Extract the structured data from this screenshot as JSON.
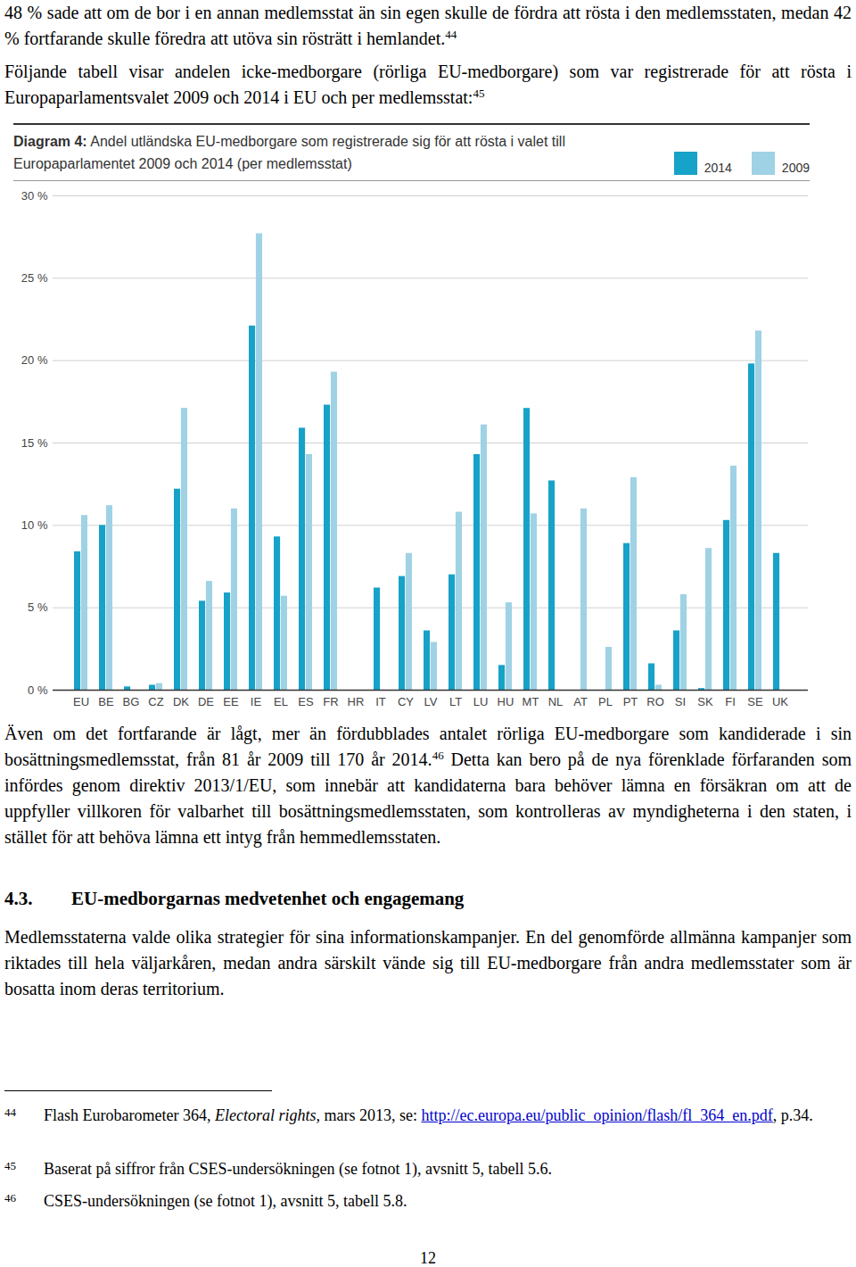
{
  "page": {
    "paragraphs_top": [
      [
        {
          "text": "48 % sade att om de bor i en annan medlemsstat än sin egen skulle de fördra att rösta i den medlemsstaten, medan 42 % fortfarande skulle föredra att utöva sin rösträtt i hemlandet."
        },
        {
          "sup": "44"
        }
      ],
      [
        {
          "text": "Följande tabell visar andelen icke-medborgare (rörliga EU-medborgare) som var registrerade för att rösta i Europaparlamentsvalet 2009 och 2014 i EU och per medlemsstat:"
        },
        {
          "sup": "45"
        }
      ]
    ],
    "paragraphs_after_chart": [
      [
        {
          "text": "Även om det fortfarande är lågt, mer än fördubblades antalet rörliga EU-medborgare som kandiderade i sin bosättningsmedlemsstat, från 81 år 2009 till 170 år 2014."
        },
        {
          "sup": "46"
        },
        {
          "text": " Detta kan bero på de nya förenklade förfaranden som infördes genom direktiv 2013/1/EU, som innebär att kandidaterna bara behöver lämna en försäkran om att de uppfyller villkoren för valbarhet till bosättningsmedlemsstaten, som kontrolleras av myndigheterna i den staten, i stället för att behöva lämna ett intyg från hemmedlemsstaten."
        }
      ]
    ],
    "heading": {
      "number": "4.3.",
      "text": "EU-medborgarnas medvetenhet och engagemang"
    },
    "paragraphs_after_heading": [
      [
        {
          "text": "Medlemsstaterna valde olika strategier för sina informationskampanjer. En del genomförde allmänna kampanjer som riktades till hela väljarkåren, medan andra särskilt vände sig till EU-medborgare från andra medlemsstater som är bosatta inom deras territorium."
        }
      ]
    ],
    "footnotes": [
      {
        "number": "44",
        "content": [
          {
            "text": "Flash Eurobarometer 364, "
          },
          {
            "italic": "Electoral rights"
          },
          {
            "text": ", mars 2013, se: "
          },
          {
            "link": "http://ec.europa.eu/public_opinion/flash/fl_364_en.pdf"
          },
          {
            "text": ", p.34."
          }
        ]
      },
      {
        "number": "45",
        "content": [
          {
            "text": "Baserat på siffror från CSES-undersökningen (se fotnot 1), avsnitt 5, tabell 5.6."
          }
        ]
      },
      {
        "number": "46",
        "content": [
          {
            "text": "CSES-undersökningen (se fotnot 1), avsnitt 5, tabell 5.8."
          }
        ]
      }
    ],
    "page_number": "12"
  },
  "chart_data": {
    "type": "bar",
    "title": "Diagram 4: Andel utländska EU-medborgare som registrerade sig för att rösta i valet till Europaparlamentet 2009 och 2014 (per medlemsstat)",
    "categories": [
      "EU",
      "BE",
      "BG",
      "CZ",
      "DK",
      "DE",
      "EE",
      "IE",
      "EL",
      "ES",
      "FR",
      "HR",
      "IT",
      "CY",
      "LV",
      "LT",
      "LU",
      "HU",
      "MT",
      "NL",
      "AT",
      "PL",
      "PT",
      "RO",
      "SI",
      "SK",
      "FI",
      "SE",
      "UK"
    ],
    "series": [
      {
        "name": "2014",
        "color": "#17a2c8",
        "values": [
          8.4,
          10.0,
          0.2,
          0.3,
          12.2,
          5.4,
          5.9,
          22.1,
          9.3,
          15.9,
          17.3,
          0,
          6.2,
          6.9,
          3.6,
          7.0,
          14.3,
          1.5,
          17.1,
          12.7,
          0,
          0,
          8.9,
          1.6,
          3.6,
          0.1,
          10.3,
          19.8,
          8.3
        ]
      },
      {
        "name": "2009",
        "color": "#9fd2e4",
        "values": [
          10.6,
          11.2,
          null,
          0.4,
          17.1,
          6.6,
          11.0,
          27.7,
          5.7,
          14.3,
          19.3,
          null,
          null,
          8.3,
          2.9,
          10.8,
          16.1,
          5.3,
          10.7,
          null,
          11.0,
          2.6,
          12.9,
          0.3,
          5.8,
          8.6,
          13.6,
          21.8,
          null
        ]
      }
    ],
    "ylim": [
      0,
      30
    ],
    "yticks": [
      {
        "value": 0,
        "label": "0 %"
      },
      {
        "value": 5,
        "label": "5 %"
      },
      {
        "value": 10,
        "label": "10 %"
      },
      {
        "value": 15,
        "label": "15 %"
      },
      {
        "value": 20,
        "label": "20 %"
      },
      {
        "value": 25,
        "label": "25 %"
      },
      {
        "value": 30,
        "label": "30 %"
      }
    ],
    "grid": true,
    "legend": "top-right"
  }
}
